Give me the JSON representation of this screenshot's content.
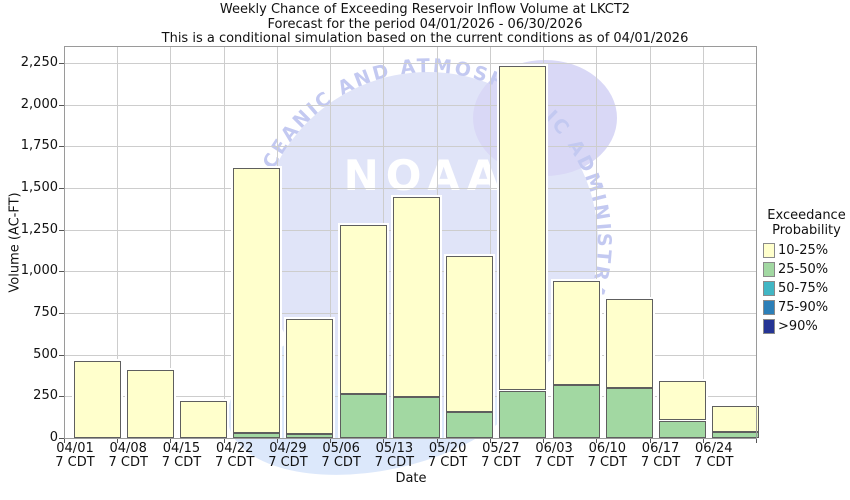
{
  "title": {
    "line1": "Weekly Chance of Exceeding Reservoir Inflow Volume at LKCT2",
    "line2": "Forecast for the period 04/01/2026 - 06/30/2026",
    "line3": "This is a conditional simulation based on the current conditions as of 04/01/2026"
  },
  "y_axis": {
    "label": "Volume (AC-FT)",
    "tick_labels": [
      "0",
      "250",
      "500",
      "750",
      "1,000",
      "1,250",
      "1,500",
      "1,750",
      "2,000",
      "2,250"
    ],
    "tick_step": 250
  },
  "x_axis": {
    "label": "Date",
    "tick_sublabel": "7 CDT"
  },
  "legend": {
    "title_line1": "Exceedance",
    "title_line2": "Probability",
    "items": [
      {
        "label": "10-25%",
        "color": "#FFFFCC"
      },
      {
        "label": "25-50%",
        "color": "#A2D8A2"
      },
      {
        "label": "50-75%",
        "color": "#41B6C4"
      },
      {
        "label": "75-90%",
        "color": "#2C7FB8"
      },
      {
        "label": ">90%",
        "color": "#253494"
      }
    ]
  },
  "watermark": {
    "acronym": "NOAA",
    "arc_text": "CEANIC AND ATMOSPHERIC ADMINISTRATION",
    "circle_color": "#e0e4f8",
    "patch_color": "#d9d8f6",
    "swoosh_color": "#dce8fb",
    "text_color": "#c3c9f1",
    "acronym_color": "#ffffff"
  },
  "chart_data": {
    "type": "bar",
    "stacked": true,
    "title": "Weekly Chance of Exceeding Reservoir Inflow Volume at LKCT2",
    "subtitle": "Forecast for the period 04/01/2026 - 06/30/2026",
    "note": "This is a conditional simulation based on the current conditions as of 04/01/2026",
    "xlabel": "Date",
    "ylabel": "Volume (AC-FT)",
    "ylim": [
      0,
      2350
    ],
    "ytick_step": 250,
    "grid": true,
    "legend_position": "right",
    "categories": [
      "04/01",
      "04/08",
      "04/15",
      "04/22",
      "04/29",
      "05/06",
      "05/13",
      "05/20",
      "05/27",
      "06/03",
      "06/10",
      "06/17",
      "06/24"
    ],
    "tick_sublabel": "7 CDT",
    "series": [
      {
        "name": "25-50%",
        "color": "#A2D8A2",
        "values": [
          0,
          0,
          0,
          30,
          25,
          265,
          245,
          155,
          285,
          320,
          300,
          105,
          35
        ]
      },
      {
        "name": "10-25%",
        "color": "#FFFFCC",
        "values": [
          460,
          410,
          225,
          1590,
          690,
          1015,
          1200,
          935,
          1945,
          620,
          535,
          235,
          160
        ]
      }
    ],
    "bar_totals": [
      460,
      410,
      225,
      1620,
      715,
      1280,
      1445,
      1090,
      2230,
      940,
      835,
      340,
      195
    ]
  }
}
